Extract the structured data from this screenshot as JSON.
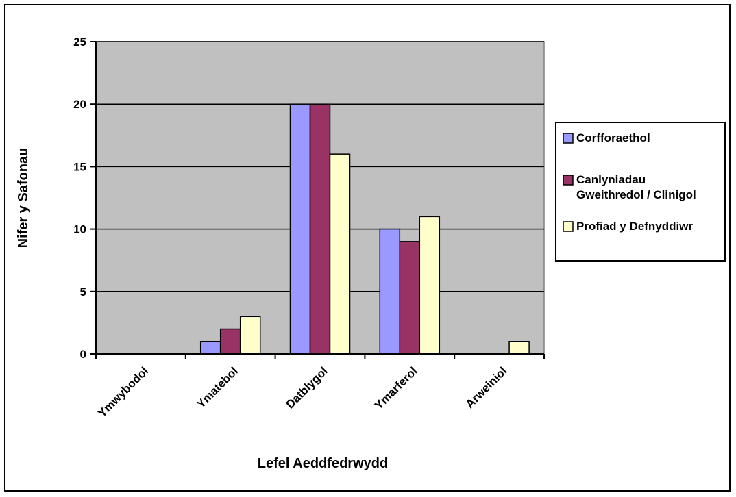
{
  "chart_data": {
    "type": "bar",
    "title": "",
    "xlabel": "Lefel Aeddfedrwydd",
    "ylabel": "Nifer y Safonau",
    "ylim": [
      0,
      25
    ],
    "yticks": [
      0,
      5,
      10,
      15,
      20,
      25
    ],
    "grid": true,
    "legend_position": "right",
    "plot_background": "#c0c0c0",
    "categories": [
      "Ymwybodol",
      "Ymatebol",
      "Datblygol",
      "Ymarferol",
      "Arweiniol"
    ],
    "series": [
      {
        "name": "Corfforaethol",
        "color": "#9999ff",
        "values": [
          0,
          1,
          20,
          10,
          0
        ]
      },
      {
        "name": "Canlyniadau Gweithredol / Clinigol",
        "name_lines": [
          "Canlyniadau",
          "Gweithredol / Clinigol"
        ],
        "color": "#993366",
        "values": [
          0,
          2,
          20,
          9,
          0
        ]
      },
      {
        "name": "Profiad y Defnyddiwr",
        "color": "#ffffcc",
        "values": [
          0,
          3,
          16,
          11,
          1
        ]
      }
    ]
  }
}
